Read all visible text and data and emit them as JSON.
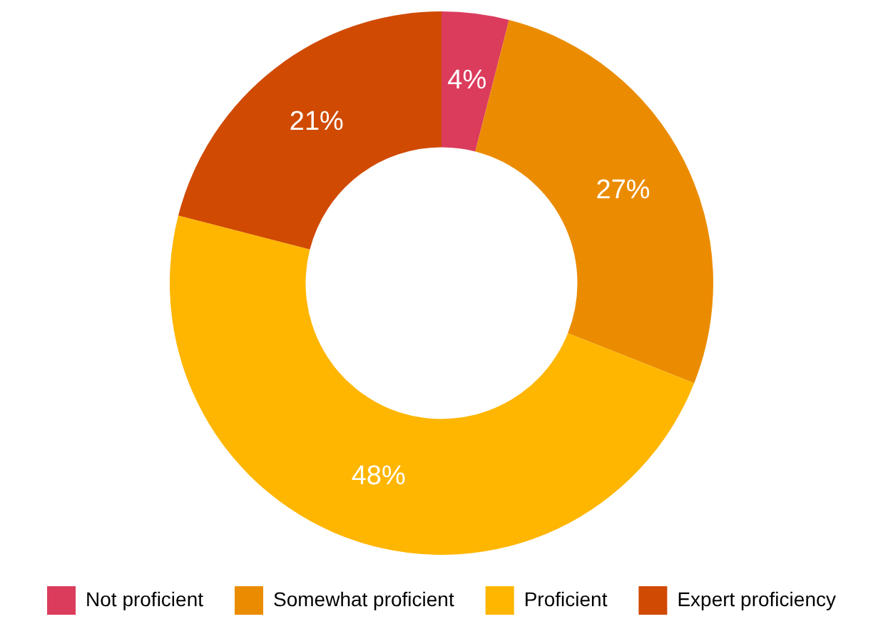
{
  "chart_data": {
    "type": "donut",
    "categories": [
      "Not proficient",
      "Somewhat proficient",
      "Proficient",
      "Expert proficiency"
    ],
    "values": [
      4,
      27,
      48,
      21
    ],
    "colors": [
      "#db3c5c",
      "#eb8c00",
      "#ffb600",
      "#d04a02"
    ],
    "value_labels": [
      "4%",
      "27%",
      "48%",
      "21%"
    ],
    "legend": "bottom"
  }
}
